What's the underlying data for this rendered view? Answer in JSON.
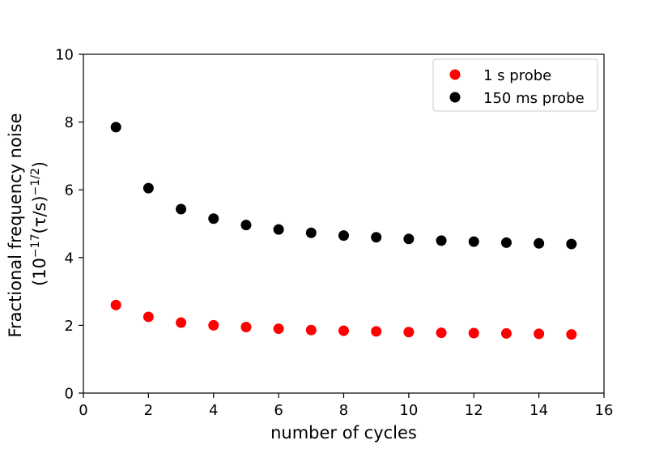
{
  "chart_data": {
    "type": "scatter",
    "xlabel": "number of cycles",
    "ylabel_line1": "Fractional frequency noise",
    "ylabel_line2": {
      "base": "(10",
      "exp1": "−17",
      "mid": "(τ/s)",
      "exp2": "−1/2",
      "end": ")"
    },
    "xlim": [
      0,
      16
    ],
    "ylim": [
      0,
      10
    ],
    "xticks": [
      0,
      2,
      4,
      6,
      8,
      10,
      12,
      14,
      16
    ],
    "yticks": [
      0,
      2,
      4,
      6,
      8,
      10
    ],
    "xtick_labels": [
      "0",
      "2",
      "4",
      "6",
      "8",
      "10",
      "12",
      "14",
      "16"
    ],
    "ytick_labels": [
      "0",
      "2",
      "4",
      "6",
      "8",
      "10"
    ],
    "legend_position": "top-right",
    "series": [
      {
        "name": "1 s probe",
        "color": "#ff0000",
        "x": [
          1,
          2,
          3,
          4,
          5,
          6,
          7,
          8,
          9,
          10,
          11,
          12,
          13,
          14,
          15
        ],
        "y": [
          2.6,
          2.25,
          2.08,
          2.0,
          1.95,
          1.9,
          1.86,
          1.84,
          1.82,
          1.8,
          1.78,
          1.77,
          1.76,
          1.75,
          1.73
        ]
      },
      {
        "name": "150 ms probe",
        "color": "#000000",
        "x": [
          1,
          2,
          3,
          4,
          5,
          6,
          7,
          8,
          9,
          10,
          11,
          12,
          13,
          14,
          15
        ],
        "y": [
          7.85,
          6.05,
          5.43,
          5.15,
          4.96,
          4.83,
          4.73,
          4.65,
          4.6,
          4.55,
          4.5,
          4.47,
          4.44,
          4.42,
          4.4
        ]
      }
    ]
  }
}
